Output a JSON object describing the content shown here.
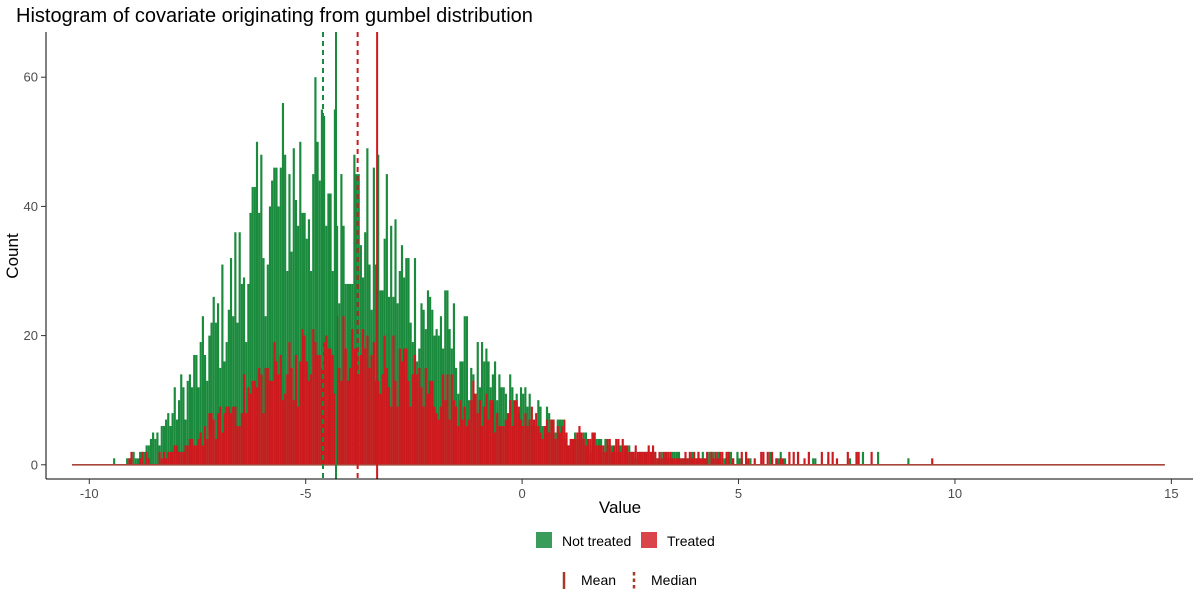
{
  "chart_data": {
    "type": "histogram",
    "title": "Histogram of covariate originating from gumbel distribution",
    "xlabel": "Value",
    "ylabel": "Count",
    "xlim": [
      -11,
      15.5
    ],
    "ylim": [
      -2.2,
      67
    ],
    "x_ticks": [
      -10,
      -5,
      0,
      5,
      10,
      15
    ],
    "y_ticks": [
      0,
      20,
      40,
      60
    ],
    "grid": false,
    "bin_range": [
      -10.4,
      14.85
    ],
    "bin_width": 0.05,
    "series": [
      {
        "name": "Not treated",
        "color": "#1a8a3c",
        "peak_count": 64,
        "peak_at": -5.75,
        "approx_bin_centers": [
          -9.0,
          -8.5,
          -8.0,
          -7.5,
          -7.0,
          -6.5,
          -6.0,
          -5.5,
          -5.0,
          -4.5,
          -4.0,
          -3.5,
          -3.0,
          -2.5,
          -2.0,
          -1.5,
          -1.0,
          -0.5,
          0.0,
          0.5,
          1.0,
          1.5,
          2.0,
          2.5,
          3.0,
          3.5,
          4.0,
          5.0,
          6.0
        ],
        "approx_counts": [
          1,
          4,
          9,
          15,
          22,
          30,
          38,
          42,
          44,
          43,
          40,
          36,
          31,
          26,
          22,
          18,
          14,
          11,
          9,
          7,
          5,
          4,
          3,
          2,
          1.5,
          1,
          1,
          0.5,
          0.3
        ],
        "mean": -4.3,
        "median": -4.6
      },
      {
        "name": "Treated",
        "color": "#cc1a1f",
        "peak_count": 31,
        "peak_at": -4.1,
        "approx_bin_centers": [
          -9.0,
          -8.5,
          -8.0,
          -7.5,
          -7.0,
          -6.5,
          -6.0,
          -5.5,
          -5.0,
          -4.5,
          -4.0,
          -3.5,
          -3.0,
          -2.5,
          -2.0,
          -1.5,
          -1.0,
          -0.5,
          0.0,
          0.5,
          1.0,
          1.5,
          2.0,
          2.5,
          3.0,
          3.5,
          4.0,
          5.0,
          6.0,
          7.0
        ],
        "approx_counts": [
          0.2,
          0.6,
          2,
          4,
          7,
          10,
          13,
          15,
          16,
          17,
          17,
          16,
          15,
          13,
          11,
          10,
          9,
          8,
          7,
          6,
          5,
          4,
          3,
          2.5,
          2,
          1.5,
          1,
          0.6,
          0.4,
          0.2
        ],
        "mean": -3.35,
        "median": -3.8
      }
    ],
    "reference_lines": [
      {
        "series": "Not treated",
        "stat": "Mean",
        "x": -4.3,
        "style": "solid",
        "color": "#1a8a3c"
      },
      {
        "series": "Not treated",
        "stat": "Median",
        "x": -4.6,
        "style": "dashed",
        "color": "#1a8a3c"
      },
      {
        "series": "Treated",
        "stat": "Mean",
        "x": -3.35,
        "style": "solid",
        "color": "#cc1a1f"
      },
      {
        "series": "Treated",
        "stat": "Median",
        "x": -3.8,
        "style": "dashed",
        "color": "#cc1a1f"
      }
    ],
    "legend": {
      "placement": "bottom",
      "fill_title": "",
      "fill_items": [
        {
          "label": "Not treated",
          "color": "#3a9c5a"
        },
        {
          "label": "Treated",
          "color": "#d9454a"
        }
      ],
      "line_items": [
        {
          "label": "Mean",
          "style": "solid",
          "color": "#a83a2a"
        },
        {
          "label": "Median",
          "style": "dashed",
          "color": "#a83a2a"
        }
      ]
    }
  }
}
